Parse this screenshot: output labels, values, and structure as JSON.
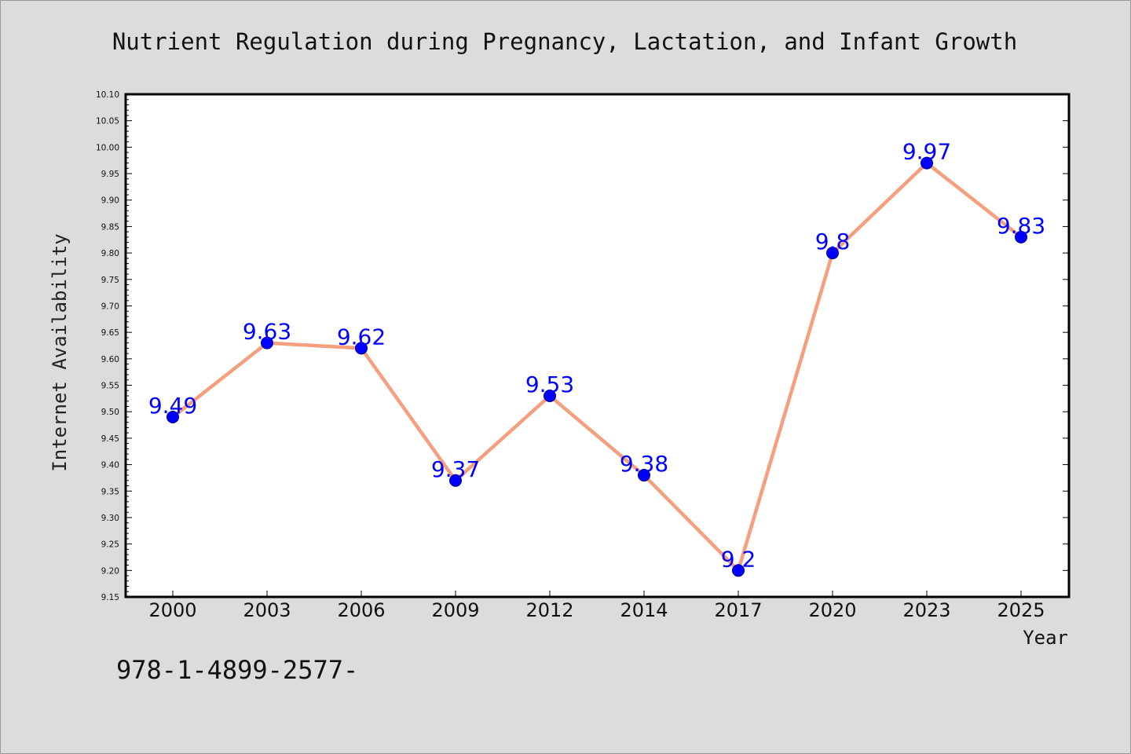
{
  "chart_data": {
    "type": "line",
    "title": "Nutrient Regulation during Pregnancy, Lactation, and Infant Growth",
    "xlabel": "Year",
    "ylabel": "Internet Availability",
    "categories": [
      "2000",
      "2003",
      "2006",
      "2009",
      "2012",
      "2014",
      "2017",
      "2020",
      "2023",
      "2025"
    ],
    "series": [
      {
        "values": [
          9.49,
          9.63,
          9.62,
          9.37,
          9.53,
          9.38,
          9.2,
          9.8,
          9.97,
          9.83
        ],
        "data_labels": [
          "9.49",
          "9.63",
          "9.62",
          "9.37",
          "9.53",
          "9.38",
          "9.2",
          "9.8",
          "9.97",
          "9.83"
        ],
        "line_color": "#f4a07e",
        "marker_color": "#0000ff"
      }
    ],
    "ylim": [
      9.15,
      10.1
    ],
    "yticks": [
      "9.15",
      "9.20",
      "9.25",
      "9.30",
      "9.35",
      "9.40",
      "9.45",
      "9.50",
      "9.55",
      "9.60",
      "9.65",
      "9.70",
      "9.75",
      "9.80",
      "9.85",
      "9.90",
      "9.95",
      "10.00",
      "10.05",
      "10.10"
    ],
    "grid": false,
    "legend": "none"
  },
  "footer": {
    "text": "978-1-4899-2577-"
  },
  "colors": {
    "background": "#dcdcdc",
    "plot_background": "#ffffff",
    "line": "#f4a07e",
    "marker": "#0000ff",
    "data_label": "#0000ff"
  }
}
